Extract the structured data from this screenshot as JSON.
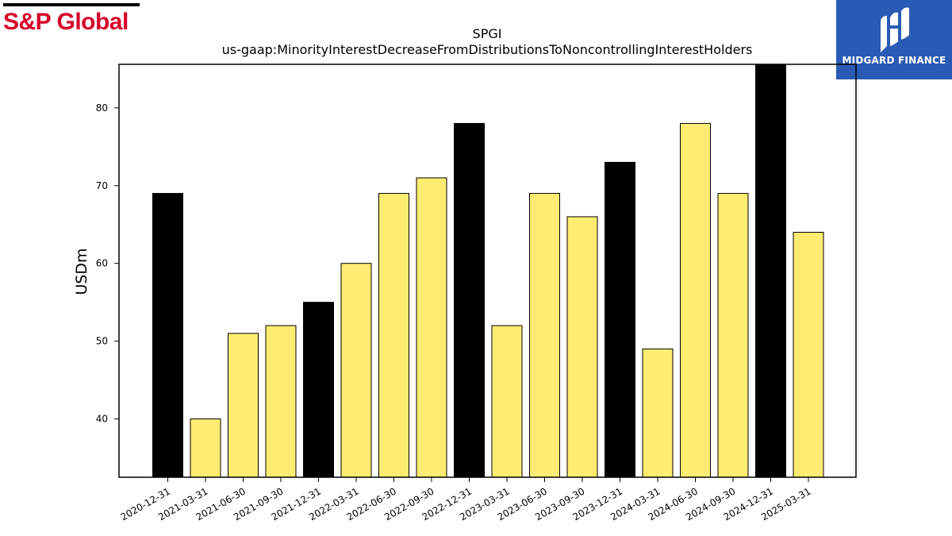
{
  "logos": {
    "left_brand": "S&P Global",
    "right_brand": "MIDGARD FINANCE"
  },
  "colors": {
    "highlight_bar": "#000000",
    "normal_bar": "#ffec72",
    "sp_red": "#d6002a",
    "midgard_blue": "#2a5bb4"
  },
  "chart_data": {
    "type": "bar",
    "title": "SPGI",
    "subtitle": "us-gaap:MinorityInterestDecreaseFromDistributionsToNoncontrollingInterestHolders",
    "xlabel": "",
    "ylabel": "USDm",
    "ylim": [
      32.5,
      85.6
    ],
    "yticks": [
      40,
      50,
      60,
      70,
      80
    ],
    "grid": false,
    "categories": [
      "2020-12-31",
      "2021-03-31",
      "2021-06-30",
      "2021-09-30",
      "2021-12-31",
      "2022-03-31",
      "2022-06-30",
      "2022-09-30",
      "2022-12-31",
      "2023-03-31",
      "2023-06-30",
      "2023-09-30",
      "2023-12-31",
      "2024-03-31",
      "2024-06-30",
      "2024-09-30",
      "2024-12-31",
      "2025-03-31"
    ],
    "values": [
      69,
      40,
      51,
      52,
      55,
      60,
      69,
      71,
      78,
      52,
      69,
      66,
      73,
      49,
      78,
      69,
      86,
      64
    ],
    "year_end": [
      true,
      false,
      false,
      false,
      true,
      false,
      false,
      false,
      true,
      false,
      false,
      false,
      true,
      false,
      false,
      false,
      true,
      false
    ]
  }
}
